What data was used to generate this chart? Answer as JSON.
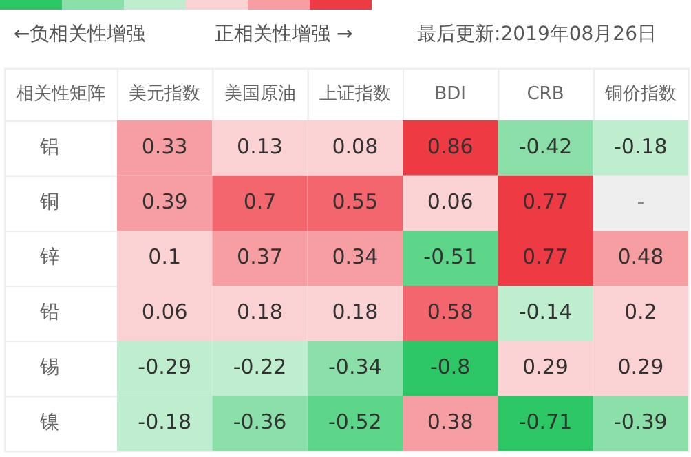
{
  "chart_data": {
    "type": "heatmap",
    "title": "相关性矩阵",
    "annotations": [
      "←负相关性增强",
      "正相关性增强 →",
      "最后更新:2019年08月26日",
      "-"
    ],
    "categories": [
      "美元指数",
      "美国原油",
      "上证指数",
      "BDI",
      "CRB",
      "铜价指数"
    ],
    "y_categories": [
      "铝",
      "铜",
      "锌",
      "铅",
      "锡",
      "镍"
    ],
    "cells": [
      [
        0.33,
        0.13,
        0.08,
        0.86,
        -0.42,
        -0.18
      ],
      [
        0.39,
        0.7,
        0.55,
        0.06,
        0.77,
        null
      ],
      [
        0.1,
        0.37,
        0.34,
        -0.51,
        0.77,
        0.48
      ],
      [
        0.06,
        0.18,
        0.18,
        0.58,
        -0.14,
        0.2
      ],
      [
        -0.29,
        -0.22,
        -0.34,
        -0.8,
        0.29,
        0.29
      ],
      [
        -0.18,
        -0.36,
        -0.52,
        0.38,
        -0.71,
        -0.39
      ]
    ],
    "colors": [
      [
        "#f79ea2",
        "#fad2d4",
        "#fad2d4",
        "#ee3a43",
        "#8ae0a8",
        "#bfeecf"
      ],
      [
        "#f79ea2",
        "#f4666d",
        "#f4666d",
        "#fad2d4",
        "#ee3a43",
        "#eeeeee"
      ],
      [
        "#fad2d4",
        "#f79ea2",
        "#f79ea2",
        "#5ed68a",
        "#ee3a43",
        "#f79ea2"
      ],
      [
        "#fad2d4",
        "#fad2d4",
        "#fad2d4",
        "#f4666d",
        "#bfeecf",
        "#fad2d4"
      ],
      [
        "#bfeecf",
        "#bfeecf",
        "#8ae0a8",
        "#2dc664",
        "#fad2d4",
        "#fad2d4"
      ],
      [
        "#bfeecf",
        "#8ae0a8",
        "#5ed68a",
        "#f79ea2",
        "#2dc664",
        "#8ae0a8"
      ]
    ],
    "data_labels": true
  }
}
